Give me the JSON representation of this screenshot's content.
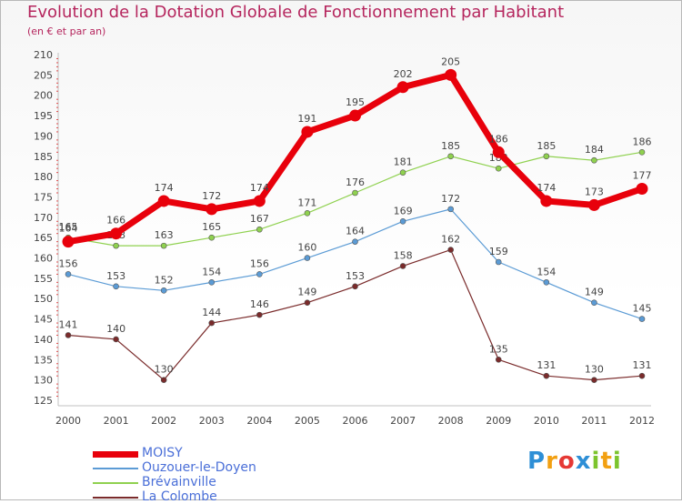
{
  "title": "Evolution de la Dotation Globale de Fonctionnement par Habitant",
  "subtitle": "(en € et par an)",
  "logo": {
    "text": "Proxiti",
    "letters": [
      "P",
      "r",
      "o",
      "x",
      "i",
      "t",
      "i"
    ],
    "colors": [
      "#2e8fd6",
      "#f2a012",
      "#e53935",
      "#2e8fd6",
      "#7cc42d",
      "#f2a012",
      "#7cc42d"
    ]
  },
  "chart_data": {
    "type": "line",
    "x": [
      "2000",
      "2001",
      "2002",
      "2003",
      "2004",
      "2005",
      "2006",
      "2007",
      "2008",
      "2009",
      "2010",
      "2011",
      "2012"
    ],
    "ylim": [
      125,
      210
    ],
    "yticks": [
      125,
      130,
      135,
      140,
      145,
      150,
      155,
      160,
      165,
      170,
      175,
      180,
      185,
      190,
      195,
      200,
      205,
      210
    ],
    "grid": false,
    "legend_position": "bottom-left",
    "series": [
      {
        "name": "MOISY",
        "color": "#e8000b",
        "values": [
          164,
          166,
          174,
          172,
          174,
          191,
          195,
          202,
          205,
          186,
          174,
          173,
          177
        ]
      },
      {
        "name": "Ouzouer-le-Doyen",
        "color": "#5b9bd5",
        "values": [
          156,
          153,
          152,
          154,
          156,
          160,
          164,
          169,
          172,
          159,
          154,
          149,
          145
        ]
      },
      {
        "name": "Brévainville",
        "color": "#8fd14f",
        "values": [
          165,
          163,
          163,
          165,
          167,
          171,
          176,
          181,
          185,
          182,
          185,
          184,
          186
        ]
      },
      {
        "name": "La Colombe",
        "color": "#7a2b2b",
        "values": [
          141,
          140,
          130,
          144,
          146,
          149,
          153,
          158,
          162,
          135,
          131,
          130,
          131
        ]
      }
    ]
  }
}
